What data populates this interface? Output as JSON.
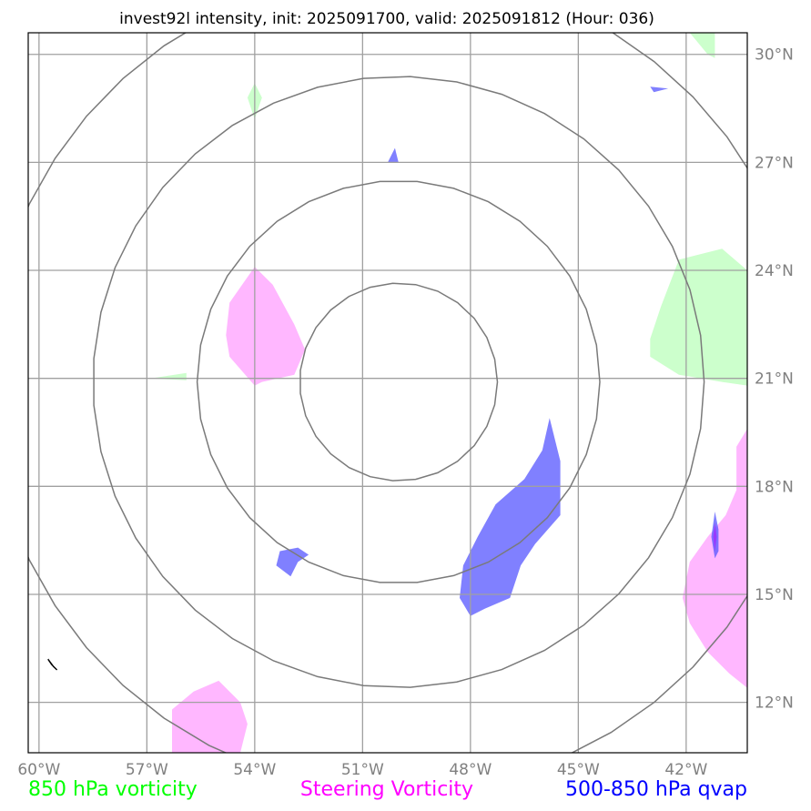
{
  "title": "invest92l intensity, init: 2025091700, valid: 2025091812 (Hour: 036)",
  "map": {
    "lon_min": -60.3,
    "lon_max": -40.3,
    "lat_min": 10.6,
    "lat_max": 30.6,
    "storm_center": {
      "lon": -50.0,
      "lat": 20.9
    },
    "range_rings_deg": [
      2.75,
      5.6,
      8.5,
      11.4
    ],
    "longitude_ticks": [
      {
        "value": -60,
        "label": "60°W"
      },
      {
        "value": -57,
        "label": "57°W"
      },
      {
        "value": -54,
        "label": "54°W"
      },
      {
        "value": -51,
        "label": "51°W"
      },
      {
        "value": -48,
        "label": "48°W"
      },
      {
        "value": -45,
        "label": "45°W"
      },
      {
        "value": -42,
        "label": "42°W"
      }
    ],
    "latitude_ticks": [
      {
        "value": 30,
        "label": "30°N"
      },
      {
        "value": 27,
        "label": "27°N"
      },
      {
        "value": 24,
        "label": "24°N"
      },
      {
        "value": 21,
        "label": "21°N"
      },
      {
        "value": 18,
        "label": "18°N"
      },
      {
        "value": 15,
        "label": "15°N"
      },
      {
        "value": 12,
        "label": "12°N"
      }
    ],
    "colors": {
      "vorticity_850": "#ccffcc",
      "steering_vorticity": "#ff99ff",
      "qvap": "#5555ff",
      "qvap_core": "#9933ff",
      "ring": "#7a7a7a",
      "grid": "#a0a0a0"
    },
    "fields": {
      "vorticity_850": [
        [
          [
            -54.0,
            29.2
          ],
          [
            -53.8,
            28.8
          ],
          [
            -54.0,
            28.2
          ],
          [
            -54.2,
            28.8
          ]
        ],
        [
          [
            -56.9,
            21.0
          ],
          [
            -55.9,
            21.15
          ],
          [
            -55.9,
            20.95
          ]
        ],
        [
          [
            -42.2,
            24.3
          ],
          [
            -41.0,
            24.6
          ],
          [
            -40.3,
            24.0
          ],
          [
            -40.3,
            20.8
          ],
          [
            -41.0,
            20.9
          ],
          [
            -42.2,
            21.1
          ],
          [
            -43.0,
            21.6
          ],
          [
            -43.0,
            22.1
          ],
          [
            -42.7,
            23.0
          ]
        ],
        [
          [
            -41.9,
            30.6
          ],
          [
            -41.2,
            30.6
          ],
          [
            -41.2,
            29.9
          ],
          [
            -41.4,
            30.0
          ]
        ]
      ],
      "steering_vorticity": [
        [
          [
            -54.0,
            24.1
          ],
          [
            -53.5,
            23.6
          ],
          [
            -52.9,
            22.5
          ],
          [
            -52.6,
            21.8
          ],
          [
            -52.9,
            21.1
          ],
          [
            -53.8,
            20.9
          ],
          [
            -54.0,
            20.8
          ],
          [
            -54.7,
            21.6
          ],
          [
            -54.8,
            22.2
          ],
          [
            -54.7,
            23.1
          ]
        ],
        [
          [
            -40.3,
            19.6
          ],
          [
            -40.6,
            19.1
          ],
          [
            -40.6,
            17.9
          ],
          [
            -40.9,
            17.2
          ],
          [
            -41.4,
            16.6
          ],
          [
            -41.9,
            15.9
          ],
          [
            -42.1,
            14.9
          ],
          [
            -41.9,
            14.2
          ],
          [
            -41.4,
            13.4
          ],
          [
            -40.8,
            12.8
          ],
          [
            -40.3,
            12.4
          ]
        ],
        [
          [
            -55.0,
            12.6
          ],
          [
            -54.4,
            12.0
          ],
          [
            -54.2,
            11.4
          ],
          [
            -54.4,
            10.6
          ],
          [
            -56.3,
            10.6
          ],
          [
            -56.3,
            11.8
          ],
          [
            -55.7,
            12.3
          ]
        ]
      ],
      "qvap": [
        [
          [
            -45.8,
            19.9
          ],
          [
            -45.5,
            18.7
          ],
          [
            -45.5,
            17.2
          ],
          [
            -46.2,
            16.4
          ],
          [
            -46.6,
            15.8
          ],
          [
            -46.9,
            14.9
          ],
          [
            -47.6,
            14.6
          ],
          [
            -48.0,
            14.4
          ],
          [
            -48.3,
            14.9
          ],
          [
            -48.2,
            15.8
          ],
          [
            -47.8,
            16.6
          ],
          [
            -47.3,
            17.5
          ],
          [
            -46.5,
            18.2
          ],
          [
            -46.0,
            19.0
          ]
        ],
        [
          [
            -53.3,
            16.2
          ],
          [
            -52.8,
            16.3
          ],
          [
            -52.5,
            16.1
          ],
          [
            -52.8,
            15.9
          ],
          [
            -53.0,
            15.5
          ],
          [
            -53.4,
            15.8
          ]
        ],
        [
          [
            -50.1,
            27.4
          ],
          [
            -50.0,
            27.0
          ],
          [
            -50.3,
            27.0
          ]
        ],
        [
          [
            -43.0,
            29.1
          ],
          [
            -42.5,
            29.05
          ],
          [
            -42.9,
            28.95
          ]
        ],
        [
          [
            -41.2,
            17.3
          ],
          [
            -41.1,
            16.8
          ],
          [
            -41.1,
            16.2
          ],
          [
            -41.2,
            16.0
          ],
          [
            -41.3,
            16.6
          ]
        ]
      ],
      "qvap_core": [
        [
          [
            -41.2,
            17.0
          ],
          [
            -41.15,
            16.6
          ],
          [
            -41.2,
            16.2
          ],
          [
            -41.25,
            16.6
          ]
        ]
      ],
      "land_outline": [
        [
          [
            -59.75,
            13.2
          ],
          [
            -59.6,
            13.0
          ],
          [
            -59.5,
            12.9
          ],
          [
            -59.65,
            13.05
          ]
        ]
      ]
    }
  },
  "legend": {
    "items": [
      {
        "label": "850 hPa vorticity",
        "color": "#00ff00"
      },
      {
        "label": "Steering Vorticity",
        "color": "#ff00ff"
      },
      {
        "label": "500-850 hPa qvap",
        "color": "#0000ff"
      }
    ]
  }
}
